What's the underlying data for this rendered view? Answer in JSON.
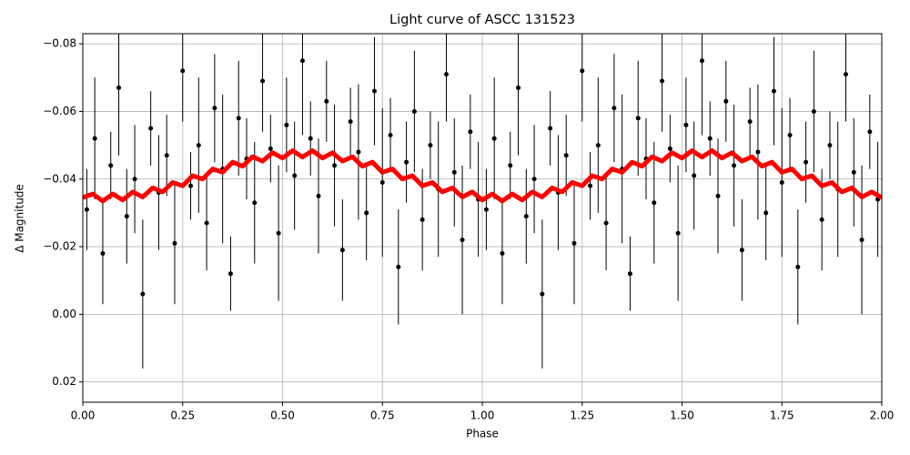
{
  "chart_data": {
    "type": "scatter",
    "title": "Light curve of ASCC 131523",
    "x_label": "Phase",
    "y_label": "Δ Magnitude",
    "xlim": [
      0,
      2
    ],
    "ylim": [
      -0.083,
      0.026
    ],
    "y_inverted": true,
    "grid": true,
    "xticks": [
      {
        "value": 0,
        "label": "0.00"
      },
      0.25,
      {
        "value": 0.5,
        "label": "0.50"
      },
      0.75,
      {
        "value": 1,
        "label": "1.00"
      },
      1.25,
      {
        "value": 1.5,
        "label": "1.50"
      },
      1.75,
      {
        "value": 2,
        "label": "2.00"
      }
    ],
    "yticks": [
      {
        "value": -0.08,
        "label": "−0.08"
      },
      {
        "value": -0.06,
        "label": "−0.06"
      },
      {
        "value": -0.04,
        "label": "−0.04"
      },
      {
        "value": -0.02,
        "label": "−0.02"
      },
      {
        "value": 0,
        "label": "0.00"
      },
      0.02
    ],
    "points": {
      "color": "#000000",
      "x": [
        0.01,
        0.03,
        0.05,
        0.07,
        0.09,
        0.11,
        0.13,
        0.15,
        0.17,
        0.19,
        0.21,
        0.23,
        0.25,
        0.27,
        0.29,
        0.31,
        0.33,
        0.35,
        0.37,
        0.39,
        0.41,
        0.43,
        0.45,
        0.47,
        0.49,
        0.51,
        0.53,
        0.55,
        0.57,
        0.59,
        0.61,
        0.63,
        0.65,
        0.67,
        0.69,
        0.71,
        0.73,
        0.75,
        0.77,
        0.79,
        0.81,
        0.83,
        0.85,
        0.87,
        0.89,
        0.91,
        0.93,
        0.95,
        0.97,
        0.99,
        1.01,
        1.03,
        1.05,
        1.07,
        1.09,
        1.11,
        1.13,
        1.15,
        1.17,
        1.19,
        1.21,
        1.23,
        1.25,
        1.27,
        1.29,
        1.31,
        1.33,
        1.35,
        1.37,
        1.39,
        1.41,
        1.43,
        1.45,
        1.47,
        1.49,
        1.51,
        1.53,
        1.55,
        1.57,
        1.59,
        1.61,
        1.63,
        1.65,
        1.67,
        1.69,
        1.71,
        1.73,
        1.75,
        1.77,
        1.79,
        1.81,
        1.83,
        1.85,
        1.87,
        1.89,
        1.91,
        1.93,
        1.95,
        1.97,
        1.99
      ],
      "values": [
        -0.031,
        -0.052,
        -0.018,
        -0.044,
        -0.067,
        -0.029,
        -0.04,
        -0.006,
        -0.055,
        -0.036,
        -0.047,
        -0.021,
        -0.072,
        -0.038,
        -0.05,
        -0.027,
        -0.061,
        -0.043,
        -0.012,
        -0.058,
        -0.046,
        -0.033,
        -0.069,
        -0.049,
        -0.024,
        -0.056,
        -0.041,
        -0.075,
        -0.052,
        -0.035,
        -0.063,
        -0.044,
        -0.019,
        -0.057,
        -0.048,
        -0.03,
        -0.066,
        -0.039,
        -0.053,
        -0.014,
        -0.045,
        -0.06,
        -0.028,
        -0.05,
        -0.037,
        -0.071,
        -0.042,
        -0.022,
        -0.054,
        -0.034,
        -0.031,
        -0.052,
        -0.018,
        -0.044,
        -0.067,
        -0.029,
        -0.04,
        -0.006,
        -0.055,
        -0.036,
        -0.047,
        -0.021,
        -0.072,
        -0.038,
        -0.05,
        -0.027,
        -0.061,
        -0.043,
        -0.012,
        -0.058,
        -0.046,
        -0.033,
        -0.069,
        -0.049,
        -0.024,
        -0.056,
        -0.041,
        -0.075,
        -0.052,
        -0.035,
        -0.063,
        -0.044,
        -0.019,
        -0.057,
        -0.048,
        -0.03,
        -0.066,
        -0.039,
        -0.053,
        -0.014,
        -0.045,
        -0.06,
        -0.028,
        -0.05,
        -0.037,
        -0.071,
        -0.042,
        -0.022,
        -0.054,
        -0.034
      ],
      "errors": [
        0.012,
        0.018,
        0.015,
        0.01,
        0.02,
        0.014,
        0.016,
        0.022,
        0.011,
        0.017,
        0.012,
        0.018,
        0.015,
        0.01,
        0.02,
        0.014,
        0.016,
        0.022,
        0.011,
        0.017,
        0.012,
        0.018,
        0.015,
        0.01,
        0.02,
        0.014,
        0.016,
        0.022,
        0.011,
        0.017,
        0.012,
        0.018,
        0.015,
        0.01,
        0.02,
        0.014,
        0.016,
        0.022,
        0.011,
        0.017,
        0.012,
        0.018,
        0.015,
        0.01,
        0.02,
        0.014,
        0.016,
        0.022,
        0.011,
        0.017,
        0.012,
        0.018,
        0.015,
        0.01,
        0.02,
        0.014,
        0.016,
        0.022,
        0.011,
        0.017,
        0.012,
        0.018,
        0.015,
        0.01,
        0.02,
        0.014,
        0.016,
        0.022,
        0.011,
        0.017,
        0.012,
        0.018,
        0.015,
        0.01,
        0.02,
        0.014,
        0.016,
        0.022,
        0.011,
        0.017,
        0.012,
        0.018,
        0.015,
        0.01,
        0.02,
        0.014,
        0.016,
        0.022,
        0.011,
        0.017,
        0.012,
        0.018,
        0.015,
        0.01,
        0.02,
        0.014,
        0.016,
        0.022,
        0.011,
        0.017
      ]
    },
    "model": {
      "color": "#ff0000",
      "x": [
        0,
        0.025,
        0.05,
        0.075,
        0.1,
        0.125,
        0.15,
        0.175,
        0.2,
        0.225,
        0.25,
        0.275,
        0.3,
        0.325,
        0.35,
        0.375,
        0.4,
        0.425,
        0.45,
        0.475,
        0.5,
        0.525,
        0.55,
        0.575,
        0.6,
        0.625,
        0.65,
        0.675,
        0.7,
        0.725,
        0.75,
        0.775,
        0.8,
        0.825,
        0.85,
        0.875,
        0.9,
        0.925,
        0.95,
        0.975,
        1,
        1.025,
        1.05,
        1.075,
        1.1,
        1.125,
        1.15,
        1.175,
        1.2,
        1.225,
        1.25,
        1.275,
        1.3,
        1.325,
        1.35,
        1.375,
        1.4,
        1.425,
        1.45,
        1.475,
        1.5,
        1.525,
        1.55,
        1.575,
        1.6,
        1.625,
        1.65,
        1.675,
        1.7,
        1.725,
        1.75,
        1.775,
        1.8,
        1.825,
        1.85,
        1.875,
        1.9,
        1.925,
        1.95,
        1.975,
        2
      ],
      "values": [
        -0.0345,
        -0.0356,
        -0.0335,
        -0.0356,
        -0.0338,
        -0.0362,
        -0.0347,
        -0.0374,
        -0.0362,
        -0.039,
        -0.038,
        -0.041,
        -0.04,
        -0.043,
        -0.042,
        -0.045,
        -0.0438,
        -0.0466,
        -0.0453,
        -0.0478,
        -0.0462,
        -0.0484,
        -0.0465,
        -0.0484,
        -0.0462,
        -0.0478,
        -0.0453,
        -0.0466,
        -0.0438,
        -0.045,
        -0.042,
        -0.043,
        -0.04,
        -0.041,
        -0.038,
        -0.039,
        -0.0362,
        -0.0374,
        -0.0347,
        -0.0362,
        -0.0338,
        -0.0356,
        -0.0335,
        -0.0356,
        -0.0338,
        -0.0362,
        -0.0347,
        -0.0374,
        -0.0362,
        -0.039,
        -0.038,
        -0.041,
        -0.04,
        -0.043,
        -0.042,
        -0.045,
        -0.0438,
        -0.0466,
        -0.0453,
        -0.0478,
        -0.0462,
        -0.0484,
        -0.0465,
        -0.0484,
        -0.0462,
        -0.0478,
        -0.0453,
        -0.0466,
        -0.0438,
        -0.045,
        -0.042,
        -0.043,
        -0.04,
        -0.041,
        -0.038,
        -0.039,
        -0.0362,
        -0.0374,
        -0.0347,
        -0.0362,
        -0.0345
      ]
    }
  }
}
